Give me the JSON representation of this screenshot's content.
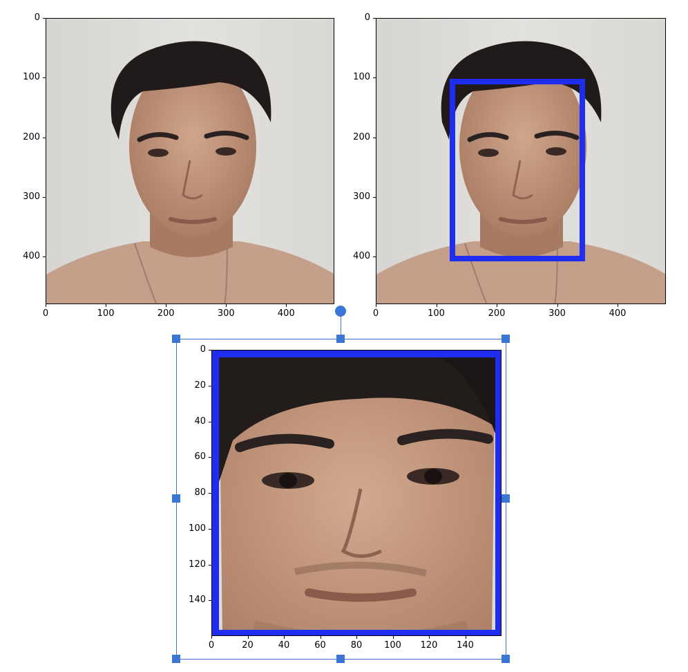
{
  "plots": [
    {
      "name": "original-image-plot",
      "xticks": [
        "0",
        "100",
        "200",
        "300",
        "400"
      ],
      "yticks": [
        "0",
        "100",
        "200",
        "300",
        "400"
      ],
      "xrange": [
        0,
        480
      ],
      "yrange": [
        0,
        480
      ]
    },
    {
      "name": "detected-face-plot",
      "xticks": [
        "0",
        "100",
        "200",
        "300",
        "400"
      ],
      "yticks": [
        "0",
        "100",
        "200",
        "300",
        "400"
      ],
      "xrange": [
        0,
        480
      ],
      "yrange": [
        0,
        480
      ],
      "box_color": "#1e2df0"
    },
    {
      "name": "cropped-face-plot",
      "xticks": [
        "0",
        "20",
        "40",
        "60",
        "80",
        "100",
        "120",
        "140"
      ],
      "yticks": [
        "0",
        "20",
        "40",
        "60",
        "80",
        "100",
        "120",
        "140"
      ],
      "xrange": [
        0,
        160
      ],
      "yrange": [
        0,
        160
      ],
      "box_color": "#1e2df0"
    }
  ],
  "colors": {
    "selection": "#3a76d6",
    "skin": "#c69c82",
    "hair": "#1f1b1a",
    "shirt": "#c9a48f"
  }
}
